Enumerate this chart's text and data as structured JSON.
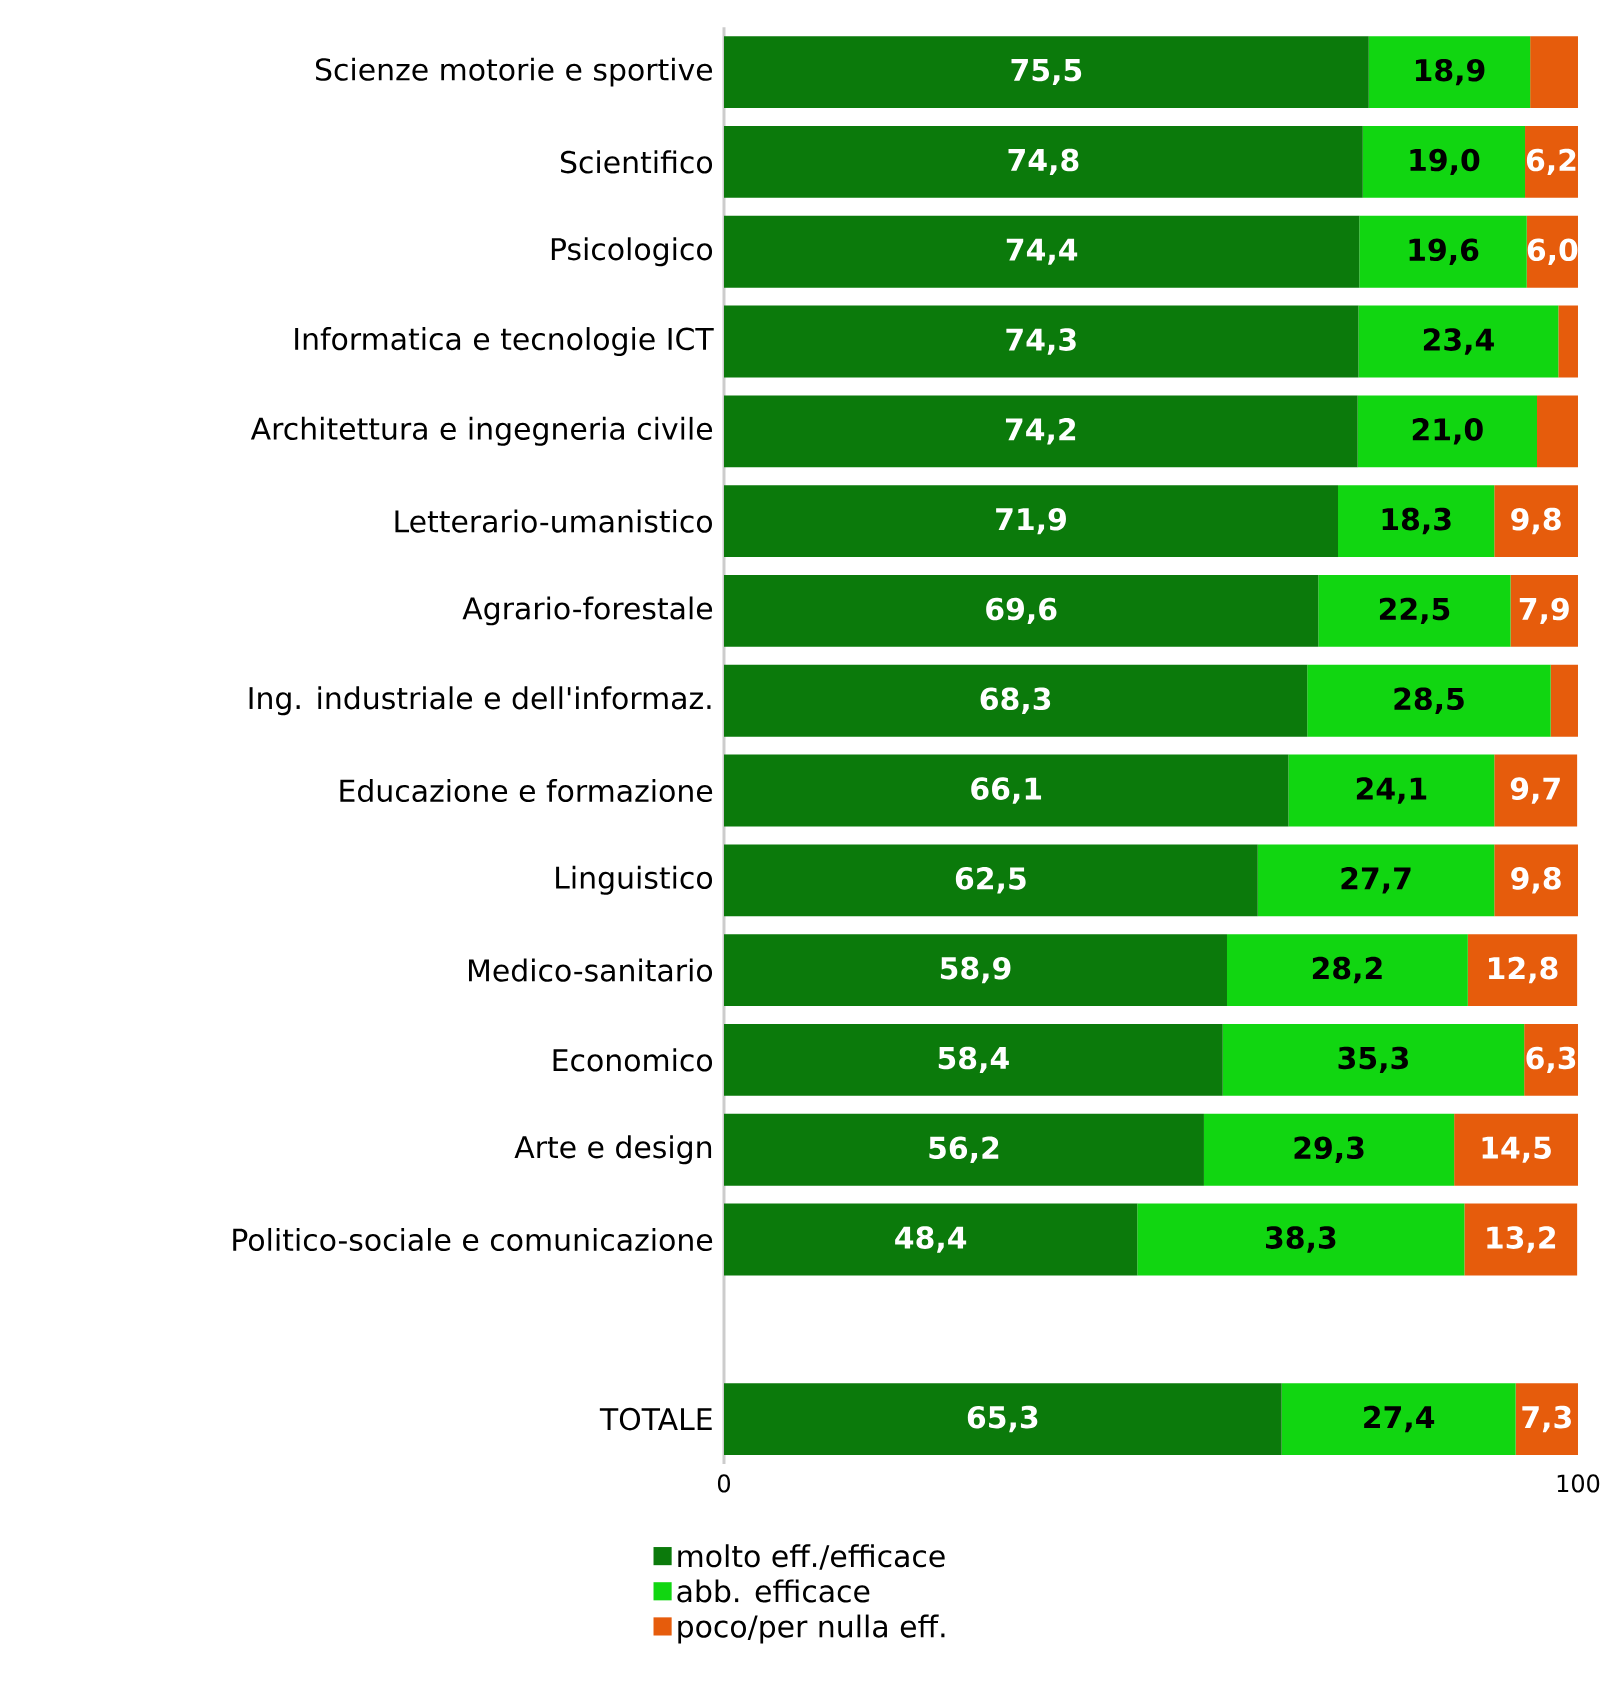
{
  "chart_data": {
    "type": "bar",
    "orientation": "horizontal",
    "stacked": true,
    "categories": [
      "Scienze motorie e sportive",
      "Scientifico",
      "Psicologico",
      "Informatica e tecnologie ICT",
      "Architettura e ingegneria civile",
      "Letterario-umanistico",
      "Agrario-forestale",
      "Ing. industriale e dell'informaz.",
      "Educazione e formazione",
      "Linguistico",
      "Medico-sanitario",
      "Economico",
      "Arte e design",
      "Politico-sociale e comunicazione",
      null,
      "TOTALE"
    ],
    "xlim": [
      0,
      100
    ],
    "xticks": [
      0,
      100
    ],
    "legend": "bottom",
    "grid": false,
    "series": [
      {
        "name": "molto eff./efficace",
        "color": "#0b7a0b",
        "values": [
          75.5,
          74.8,
          74.4,
          74.3,
          74.2,
          71.9,
          69.6,
          68.3,
          66.1,
          62.5,
          58.9,
          58.4,
          56.2,
          48.4,
          null,
          65.3
        ],
        "value_labels": [
          "75,5",
          "74,8",
          "74,4",
          "74,3",
          "74,2",
          "71,9",
          "69,6",
          "68,3",
          "66,1",
          "62,5",
          "58,9",
          "58,4",
          "56,2",
          "48,4",
          null,
          "65,3"
        ]
      },
      {
        "name": "abb. efficace",
        "color": "#11d611",
        "values": [
          18.9,
          19.0,
          19.6,
          23.4,
          21.0,
          18.3,
          22.5,
          28.5,
          24.1,
          27.7,
          28.2,
          35.3,
          29.3,
          38.3,
          null,
          27.4
        ],
        "value_labels": [
          "18,9",
          "19,0",
          "19,6",
          "23,4",
          "21,0",
          "18,3",
          "22,5",
          "28,5",
          "24,1",
          "27,7",
          "28,2",
          "35,3",
          "29,3",
          "38,3",
          null,
          "27,4"
        ]
      },
      {
        "name": "poco/per nulla eff.",
        "color": "#e65c0c",
        "values": [
          5.6,
          6.2,
          6.0,
          2.3,
          4.8,
          9.8,
          7.9,
          3.2,
          9.7,
          9.8,
          12.8,
          6.3,
          14.5,
          13.2,
          null,
          7.3
        ],
        "value_labels": [
          null,
          "6,2",
          "6,0",
          null,
          null,
          "9,8",
          "7,9",
          null,
          "9,7",
          "9,8",
          "12,8",
          "6,3",
          "14,5",
          "13,2",
          null,
          "7,3"
        ]
      }
    ]
  }
}
